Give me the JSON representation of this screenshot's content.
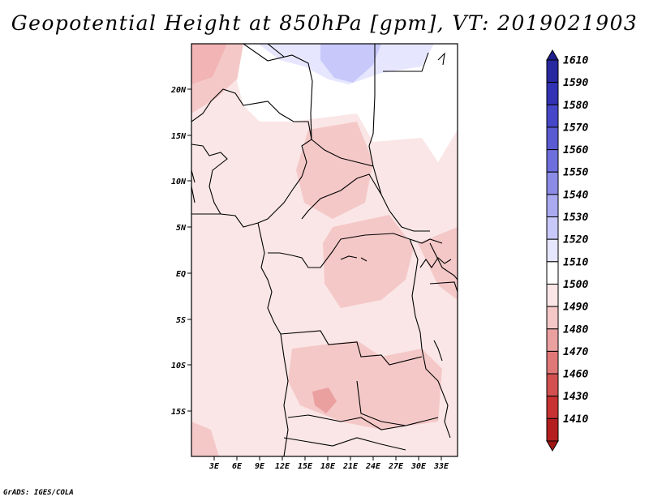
{
  "title": "Geopotential Height at 850hPa [gpm], VT: 2019021903",
  "credit": "GrADS: IGES/COLA",
  "map": {
    "lon_ticks": [
      "3E",
      "6E",
      "9E",
      "12E",
      "15E",
      "18E",
      "21E",
      "24E",
      "27E",
      "30E",
      "33E"
    ],
    "lat_ticks": [
      "20N",
      "15N",
      "10N",
      "5N",
      "EQ",
      "5S",
      "10S",
      "15S"
    ]
  },
  "colorbar": {
    "levels": [
      "1610",
      "1590",
      "1580",
      "1570",
      "1560",
      "1550",
      "1540",
      "1530",
      "1520",
      "1510",
      "1500",
      "1490",
      "1480",
      "1470",
      "1460",
      "1430",
      "1410"
    ],
    "colors": [
      "#1e1e8c",
      "#2828a0",
      "#3232b4",
      "#4646c8",
      "#5a5ad2",
      "#6e6edc",
      "#8c8ce6",
      "#aaaaf0",
      "#c8c8fa",
      "#e6e6ff",
      "#ffffff",
      "#fae6e6",
      "#f5c8c8",
      "#eba0a0",
      "#e17878",
      "#d25050",
      "#c83232",
      "#b41e1e",
      "#a01414"
    ]
  }
}
